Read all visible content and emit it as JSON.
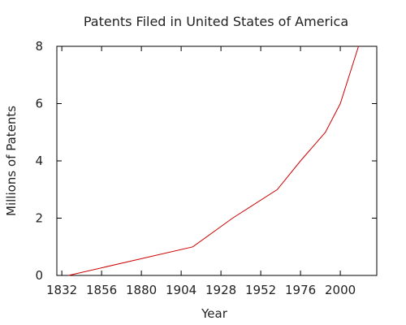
{
  "chart_data": {
    "type": "line",
    "title": "Patents Filed in United States of America",
    "xlabel": "Year",
    "ylabel": "Millions of Patents",
    "xlim": [
      1829,
      2022
    ],
    "ylim": [
      0,
      8
    ],
    "x_ticks": [
      1832,
      1856,
      1880,
      1904,
      1928,
      1952,
      1976,
      2000
    ],
    "y_ticks": [
      0,
      2,
      4,
      6,
      8
    ],
    "grid": false,
    "line_color": "#cc0000",
    "series": [
      {
        "x": [
          1836,
          1911,
          1935,
          1962,
          1976,
          1991,
          2000,
          2011
        ],
        "values": [
          0,
          1.0,
          2.0,
          3.0,
          4.0,
          5.0,
          6.0,
          8.0
        ]
      }
    ]
  }
}
